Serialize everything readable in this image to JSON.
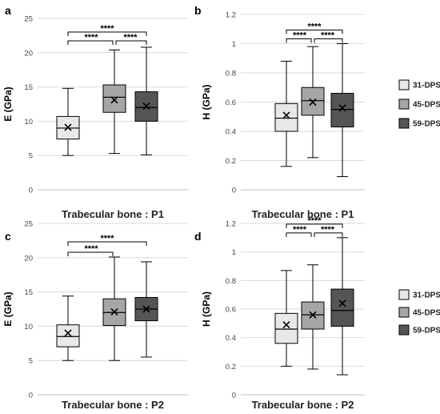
{
  "chart_data": [
    {
      "panel": "a",
      "type": "box",
      "xlabel": "Trabecular bone : P1",
      "ylabel": "E (GPa)",
      "ylim": [
        0,
        25
      ],
      "yticks": [
        "0",
        "5",
        "10",
        "15",
        "20",
        "25"
      ],
      "grid": true,
      "series": [
        {
          "name": "31-DPS",
          "min": 5.0,
          "q1": 7.4,
          "median": 9.0,
          "q3": 10.7,
          "max": 14.8,
          "mean": 9.1,
          "color": "#e8e8e8"
        },
        {
          "name": "45-DPS",
          "min": 5.3,
          "q1": 11.3,
          "median": 13.5,
          "q3": 15.3,
          "max": 20.4,
          "mean": 13.1,
          "color": "#a6a6a6"
        },
        {
          "name": "59-DPS",
          "min": 5.1,
          "q1": 10.0,
          "median": 12.0,
          "q3": 14.3,
          "max": 20.8,
          "mean": 12.2,
          "color": "#555555"
        }
      ],
      "significance": [
        {
          "pair": [
            1,
            2
          ],
          "label": "****"
        },
        {
          "pair": [
            2,
            3
          ],
          "label": "****"
        },
        {
          "pair": [
            1,
            3
          ],
          "label": "****"
        }
      ]
    },
    {
      "panel": "b",
      "type": "box",
      "xlabel": "Trabecular bone : P1",
      "ylabel": "H (GPa)",
      "ylim": [
        0,
        1.2
      ],
      "yticks": [
        "0",
        "0.2",
        "0.4",
        "0.6",
        "0.8",
        "1",
        "1.2"
      ],
      "grid": true,
      "series": [
        {
          "name": "31-DPS",
          "min": 0.16,
          "q1": 0.4,
          "median": 0.49,
          "q3": 0.59,
          "max": 0.88,
          "mean": 0.51,
          "color": "#e8e8e8"
        },
        {
          "name": "45-DPS",
          "min": 0.22,
          "q1": 0.51,
          "median": 0.61,
          "q3": 0.7,
          "max": 0.98,
          "mean": 0.6,
          "color": "#a6a6a6"
        },
        {
          "name": "59-DPS",
          "min": 0.09,
          "q1": 0.43,
          "median": 0.55,
          "q3": 0.66,
          "max": 1.0,
          "mean": 0.56,
          "color": "#555555"
        }
      ],
      "significance": [
        {
          "pair": [
            1,
            2
          ],
          "label": "****"
        },
        {
          "pair": [
            2,
            3
          ],
          "label": "****"
        },
        {
          "pair": [
            1,
            3
          ],
          "label": "****"
        }
      ],
      "legend": [
        "31-DPS",
        "45-DPS",
        "59-DPS"
      ]
    },
    {
      "panel": "c",
      "type": "box",
      "xlabel": "Trabecular bone : P2",
      "ylabel": "E (GPa)",
      "ylim": [
        0,
        25
      ],
      "yticks": [
        "0",
        "5",
        "10",
        "15",
        "20",
        "25"
      ],
      "grid": true,
      "series": [
        {
          "name": "31-DPS",
          "min": 5.0,
          "q1": 7.0,
          "median": 8.5,
          "q3": 10.2,
          "max": 14.4,
          "mean": 9.0,
          "color": "#e8e8e8"
        },
        {
          "name": "45-DPS",
          "min": 5.0,
          "q1": 10.1,
          "median": 12.0,
          "q3": 14.0,
          "max": 20.1,
          "mean": 12.1,
          "color": "#a6a6a6"
        },
        {
          "name": "59-DPS",
          "min": 5.5,
          "q1": 10.8,
          "median": 12.5,
          "q3": 14.2,
          "max": 19.4,
          "mean": 12.5,
          "color": "#555555"
        }
      ],
      "significance": [
        {
          "pair": [
            1,
            2
          ],
          "label": "****"
        },
        {
          "pair": [
            1,
            3
          ],
          "label": "****"
        }
      ]
    },
    {
      "panel": "d",
      "type": "box",
      "xlabel": "Trabecular bone : P2",
      "ylabel": "H (GPa)",
      "ylim": [
        0,
        1.2
      ],
      "yticks": [
        "0",
        "0.2",
        "0.4",
        "0.6",
        "0.8",
        "1",
        "1.2"
      ],
      "grid": true,
      "series": [
        {
          "name": "31-DPS",
          "min": 0.2,
          "q1": 0.36,
          "median": 0.46,
          "q3": 0.57,
          "max": 0.87,
          "mean": 0.49,
          "color": "#e8e8e8"
        },
        {
          "name": "45-DPS",
          "min": 0.18,
          "q1": 0.46,
          "median": 0.56,
          "q3": 0.65,
          "max": 0.91,
          "mean": 0.56,
          "color": "#a6a6a6"
        },
        {
          "name": "59-DPS",
          "min": 0.14,
          "q1": 0.48,
          "median": 0.59,
          "q3": 0.74,
          "max": 1.1,
          "mean": 0.64,
          "color": "#555555"
        }
      ],
      "significance": [
        {
          "pair": [
            1,
            2
          ],
          "label": "****"
        },
        {
          "pair": [
            2,
            3
          ],
          "label": "****"
        },
        {
          "pair": [
            1,
            3
          ],
          "label": "****"
        }
      ],
      "legend": [
        "31-DPS",
        "45-DPS",
        "59-DPS"
      ]
    }
  ]
}
